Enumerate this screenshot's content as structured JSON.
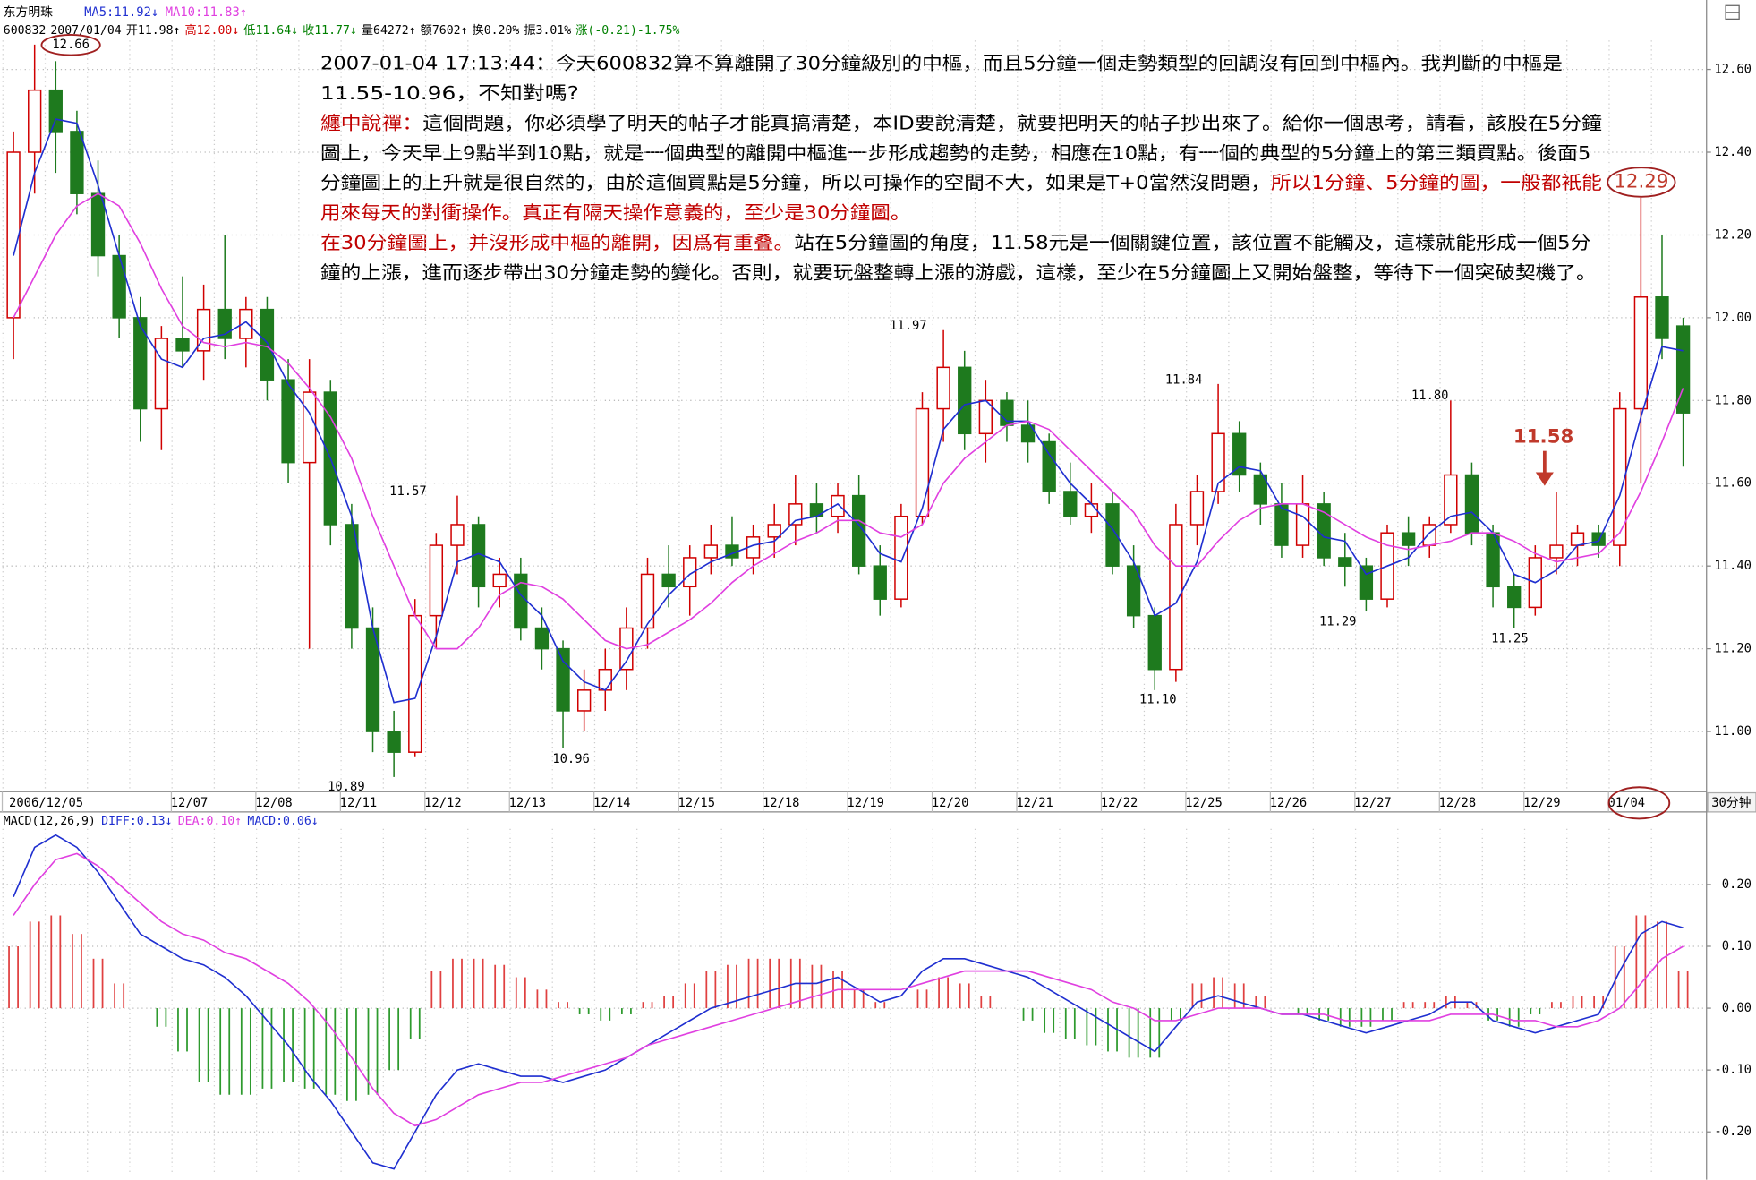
{
  "header": {
    "name": "东方明珠",
    "ma5": "MA5:11.92↓",
    "ma10": "MA10:11.83↑",
    "quote": [
      {
        "text": "600832",
        "color": "#000000"
      },
      {
        "text": "2007/01/04",
        "color": "#000000"
      },
      {
        "text": "开11.98↑",
        "color": "#000000"
      },
      {
        "text": "高12.00↓",
        "color": "#d00000"
      },
      {
        "text": "低11.64↓",
        "color": "#008000"
      },
      {
        "text": "收11.77↓",
        "color": "#008000"
      },
      {
        "text": "量64272↑",
        "color": "#000000"
      },
      {
        "text": "额7602↑",
        "color": "#000000"
      },
      {
        "text": "换0.20%",
        "color": "#000000"
      },
      {
        "text": "振3.01%",
        "color": "#000000"
      },
      {
        "text": "涨(-0.21)-1.75%",
        "color": "#008000"
      }
    ]
  },
  "note": {
    "lines": [
      [
        {
          "text": "2007-01-04 17:13:44：今天600832算不算離開了30分鐘級別的中樞，而且5分鐘一個走勢類型的回調沒有回到中樞內。我判斷的中樞是",
          "color": "#000000"
        }
      ],
      [
        {
          "text": "11.55-10.96，不知對嗎?",
          "color": "#000000"
        }
      ],
      [
        {
          "text": "纏中說禪：",
          "color": "#c00000"
        },
        {
          "text": "這個問題，你必須學了明天的帖子才能真搞清楚，本ID要說清楚，就要把明天的帖子抄出來了。給你一個思考，請看，該股在5分鐘",
          "color": "#000000"
        }
      ],
      [
        {
          "text": "圖上，今天早上9點半到10點，就是一個典型的離開中樞進一步形成趨勢的走勢，相應在10點，有一個的典型的5分鐘上的第三類買點。後面5",
          "color": "#000000"
        }
      ],
      [
        {
          "text": "分鐘圖上的上升就是很自然的，由於這個買點是5分鐘，所以可操作的空間不大，如果是T+0當然沒問題，",
          "color": "#000000"
        },
        {
          "text": "所以1分鐘、5分鐘的圖，一般都衹能",
          "color": "#c00000"
        }
      ],
      [
        {
          "text": "用來每天的對衝操作。真正有隔天操作意義的，至少是30分鐘圖。",
          "color": "#c00000"
        }
      ],
      [
        {
          "text": "在30分鐘圖上，并沒形成中樞的離開，因爲有重叠。",
          "color": "#c00000"
        },
        {
          "text": "站在5分鐘圖的角度，11.58元是一個關鍵位置，該位置不能觸及，這樣就能形成一個5分",
          "color": "#000000"
        }
      ],
      [
        {
          "text": "鐘的上漲，進而逐步帶出30分鐘走勢的變化。否則，就要玩盤整轉上漲的游戲，這樣，至少在5分鐘圖上又開始盤整，等待下一個突破契機了。",
          "color": "#000000"
        }
      ]
    ]
  },
  "chart_data": [
    {
      "type": "candlestick",
      "period": "30分钟",
      "grid": true,
      "up_color": "#d00000",
      "down_color": "#1e7a1e",
      "categories": [
        "2006/12/05",
        null,
        null,
        null,
        null,
        null,
        null,
        null,
        "12/07",
        null,
        null,
        null,
        "12/08",
        null,
        null,
        null,
        "12/11",
        null,
        null,
        null,
        "12/12",
        null,
        null,
        null,
        "12/13",
        null,
        null,
        null,
        "12/14",
        null,
        null,
        null,
        "12/15",
        null,
        null,
        null,
        "12/18",
        null,
        null,
        null,
        "12/19",
        null,
        null,
        null,
        "12/20",
        null,
        null,
        null,
        "12/21",
        null,
        null,
        null,
        "12/22",
        null,
        null,
        null,
        "12/25",
        null,
        null,
        null,
        "12/26",
        null,
        null,
        null,
        "12/27",
        null,
        null,
        null,
        "12/28",
        null,
        null,
        null,
        "12/29",
        null,
        null,
        null,
        "01/04",
        null,
        null,
        null
      ],
      "open": [
        12.0,
        12.4,
        12.55,
        12.45,
        12.3,
        12.15,
        12.0,
        11.78,
        11.95,
        11.92,
        12.02,
        11.95,
        12.02,
        11.85,
        11.65,
        11.82,
        11.5,
        11.25,
        11.0,
        10.95,
        11.28,
        11.45,
        11.5,
        11.35,
        11.38,
        11.25,
        11.2,
        11.05,
        11.1,
        11.15,
        11.25,
        11.38,
        11.35,
        11.42,
        11.45,
        11.42,
        11.47,
        11.5,
        11.55,
        11.52,
        11.57,
        11.4,
        11.32,
        11.52,
        11.78,
        11.88,
        11.72,
        11.8,
        11.74,
        11.7,
        11.58,
        11.52,
        11.55,
        11.4,
        11.28,
        11.15,
        11.5,
        11.58,
        11.72,
        11.62,
        11.55,
        11.45,
        11.55,
        11.42,
        11.4,
        11.32,
        11.48,
        11.45,
        11.5,
        11.62,
        11.48,
        11.35,
        11.3,
        11.42,
        11.45,
        11.48,
        11.45,
        11.78,
        12.05,
        11.98
      ],
      "high": [
        12.45,
        12.66,
        12.62,
        12.5,
        12.38,
        12.2,
        12.05,
        11.98,
        12.1,
        12.08,
        12.2,
        12.05,
        12.05,
        11.9,
        11.9,
        11.85,
        11.55,
        11.3,
        11.05,
        11.32,
        11.48,
        11.57,
        11.52,
        11.42,
        11.42,
        11.3,
        11.22,
        11.15,
        11.2,
        11.3,
        11.42,
        11.45,
        11.45,
        11.5,
        11.52,
        11.5,
        11.55,
        11.62,
        11.6,
        11.6,
        11.62,
        11.45,
        11.55,
        11.82,
        11.97,
        11.92,
        11.85,
        11.82,
        11.8,
        11.72,
        11.65,
        11.6,
        11.58,
        11.45,
        11.3,
        11.55,
        11.62,
        11.84,
        11.75,
        11.65,
        11.6,
        11.62,
        11.58,
        11.48,
        11.42,
        11.5,
        11.52,
        11.52,
        11.8,
        11.65,
        11.5,
        11.38,
        11.45,
        11.58,
        11.5,
        11.5,
        11.82,
        12.29,
        12.2,
        12.0
      ],
      "low": [
        11.9,
        12.3,
        12.35,
        12.25,
        12.1,
        11.95,
        11.7,
        11.68,
        11.88,
        11.85,
        11.9,
        11.88,
        11.8,
        11.6,
        11.2,
        11.45,
        11.2,
        10.95,
        10.89,
        10.94,
        11.2,
        11.38,
        11.3,
        11.3,
        11.22,
        11.15,
        10.96,
        11.0,
        11.05,
        11.1,
        11.2,
        11.3,
        11.28,
        11.38,
        11.4,
        11.38,
        11.42,
        11.45,
        11.48,
        11.48,
        11.38,
        11.28,
        11.3,
        11.5,
        11.7,
        11.68,
        11.65,
        11.7,
        11.65,
        11.55,
        11.5,
        11.48,
        11.38,
        11.25,
        11.1,
        11.12,
        11.45,
        11.55,
        11.58,
        11.5,
        11.42,
        11.42,
        11.4,
        11.35,
        11.29,
        11.3,
        11.4,
        11.42,
        11.48,
        11.45,
        11.3,
        11.25,
        11.28,
        11.38,
        11.4,
        11.42,
        11.4,
        11.6,
        11.9,
        11.64
      ],
      "close": [
        12.4,
        12.55,
        12.45,
        12.3,
        12.15,
        12.0,
        11.78,
        11.95,
        11.92,
        12.02,
        11.95,
        12.02,
        11.85,
        11.65,
        11.82,
        11.5,
        11.25,
        11.0,
        10.95,
        11.28,
        11.45,
        11.5,
        11.35,
        11.38,
        11.25,
        11.2,
        11.05,
        11.1,
        11.15,
        11.25,
        11.38,
        11.35,
        11.42,
        11.45,
        11.42,
        11.47,
        11.5,
        11.55,
        11.52,
        11.57,
        11.4,
        11.32,
        11.52,
        11.78,
        11.88,
        11.72,
        11.8,
        11.74,
        11.7,
        11.58,
        11.52,
        11.55,
        11.4,
        11.28,
        11.15,
        11.5,
        11.58,
        11.72,
        11.62,
        11.55,
        11.45,
        11.55,
        11.42,
        11.4,
        11.32,
        11.48,
        11.45,
        11.5,
        11.62,
        11.48,
        11.35,
        11.3,
        11.42,
        11.45,
        11.48,
        11.45,
        11.78,
        12.05,
        11.95,
        11.77
      ],
      "lines": [
        {
          "color": "#1f2fd0",
          "values": [
            12.15,
            12.35,
            12.48,
            12.47,
            12.32,
            12.15,
            11.98,
            11.9,
            11.88,
            11.95,
            11.96,
            11.99,
            11.94,
            11.84,
            11.77,
            11.66,
            11.52,
            11.25,
            11.07,
            11.08,
            11.23,
            11.41,
            11.43,
            11.41,
            11.33,
            11.28,
            11.17,
            11.12,
            11.1,
            11.17,
            11.26,
            11.33,
            11.38,
            11.41,
            11.43,
            11.45,
            11.46,
            11.51,
            11.52,
            11.55,
            11.5,
            11.43,
            11.41,
            11.54,
            11.73,
            11.79,
            11.8,
            11.75,
            11.75,
            11.67,
            11.6,
            11.55,
            11.49,
            11.41,
            11.28,
            11.31,
            11.41,
            11.6,
            11.64,
            11.63,
            11.54,
            11.52,
            11.47,
            11.46,
            11.38,
            11.4,
            11.42,
            11.48,
            11.52,
            11.53,
            11.48,
            11.38,
            11.36,
            11.39,
            11.45,
            11.46,
            11.57,
            11.76,
            11.93,
            11.92
          ]
        },
        {
          "color": "#e040e0",
          "values": [
            12.0,
            12.1,
            12.2,
            12.27,
            12.3,
            12.27,
            12.18,
            12.07,
            11.98,
            11.94,
            11.93,
            11.94,
            11.93,
            11.89,
            11.83,
            11.76,
            11.66,
            11.52,
            11.4,
            11.28,
            11.2,
            11.2,
            11.25,
            11.33,
            11.36,
            11.35,
            11.32,
            11.27,
            11.22,
            11.2,
            11.21,
            11.24,
            11.27,
            11.31,
            11.36,
            11.4,
            11.43,
            11.46,
            11.48,
            11.51,
            11.51,
            11.48,
            11.47,
            11.5,
            11.6,
            11.66,
            11.7,
            11.74,
            11.75,
            11.73,
            11.68,
            11.63,
            11.58,
            11.53,
            11.45,
            11.4,
            11.4,
            11.46,
            11.51,
            11.54,
            11.55,
            11.55,
            11.53,
            11.5,
            11.47,
            11.45,
            11.44,
            11.45,
            11.46,
            11.48,
            11.48,
            11.46,
            11.43,
            11.41,
            11.42,
            11.43,
            11.48,
            11.58,
            11.7,
            11.83
          ]
        }
      ],
      "ylim": [
        10.86,
        12.67
      ],
      "yticks": [
        {
          "value": 11.0,
          "label": "11.00"
        },
        {
          "value": 11.2,
          "label": "11.20"
        },
        {
          "value": 11.4,
          "label": "11.40"
        },
        {
          "value": 11.6,
          "label": "11.60"
        },
        {
          "value": 11.8,
          "label": "11.80"
        },
        {
          "value": 12.0,
          "label": "12.00"
        },
        {
          "value": 12.2,
          "label": "12.20"
        },
        {
          "value": 12.4,
          "label": "12.40"
        },
        {
          "value": 12.6,
          "label": "12.60"
        }
      ],
      "annotations": [
        {
          "text": "12.66",
          "color": "#000000"
        },
        {
          "text": "11.57",
          "color": "#000000"
        },
        {
          "text": "10.89",
          "color": "#000000"
        },
        {
          "text": "10.96",
          "color": "#000000"
        },
        {
          "text": "11.97",
          "color": "#000000"
        },
        {
          "text": "11.10",
          "color": "#000000"
        },
        {
          "text": "11.84",
          "color": "#000000"
        },
        {
          "text": "11.29",
          "color": "#000000"
        },
        {
          "text": "11.80",
          "color": "#000000"
        },
        {
          "text": "11.25",
          "color": "#000000"
        },
        {
          "text": "11.58",
          "color": "#c0392b"
        },
        {
          "text": "12.29",
          "color": "#c0392b"
        }
      ]
    },
    {
      "type": "macd",
      "title": "MACD(12,26,9)",
      "grid": true,
      "up_color": "#e04040",
      "down_color": "#2e9a2e",
      "legend": [
        {
          "text": "DIFF:0.13↓",
          "color": "#1f2fd0"
        },
        {
          "text": "DEA:0.10↑",
          "color": "#e040e0"
        },
        {
          "text": "MACD:0.06↓",
          "color": "#1f2fd0"
        }
      ],
      "values": [
        0.1,
        0.14,
        0.15,
        0.12,
        0.08,
        0.04,
        0.0,
        -0.03,
        -0.07,
        -0.12,
        -0.14,
        -0.14,
        -0.13,
        -0.12,
        -0.13,
        -0.14,
        -0.15,
        -0.14,
        -0.1,
        -0.05,
        0.06,
        0.08,
        0.08,
        0.07,
        0.05,
        0.03,
        0.01,
        -0.01,
        -0.02,
        -0.01,
        0.01,
        0.02,
        0.04,
        0.06,
        0.07,
        0.08,
        0.08,
        0.08,
        0.07,
        0.06,
        0.03,
        0.01,
        0.0,
        0.03,
        0.05,
        0.04,
        0.02,
        0.0,
        -0.02,
        -0.04,
        -0.05,
        -0.06,
        -0.07,
        -0.08,
        -0.08,
        -0.02,
        0.04,
        0.05,
        0.04,
        0.02,
        0.0,
        -0.01,
        -0.02,
        -0.03,
        -0.03,
        -0.02,
        0.01,
        0.01,
        0.02,
        0.01,
        -0.02,
        -0.03,
        -0.01,
        0.01,
        0.02,
        0.02,
        0.1,
        0.15,
        0.14,
        0.06
      ],
      "lines": [
        {
          "color": "#1f2fd0",
          "values": [
            0.18,
            0.26,
            0.28,
            0.26,
            0.22,
            0.17,
            0.12,
            0.1,
            0.08,
            0.07,
            0.05,
            0.02,
            -0.02,
            -0.06,
            -0.11,
            -0.15,
            -0.2,
            -0.25,
            -0.26,
            -0.2,
            -0.14,
            -0.1,
            -0.09,
            -0.1,
            -0.11,
            -0.11,
            -0.12,
            -0.11,
            -0.1,
            -0.08,
            -0.06,
            -0.04,
            -0.02,
            0.0,
            0.01,
            0.02,
            0.03,
            0.04,
            0.04,
            0.05,
            0.03,
            0.01,
            0.02,
            0.06,
            0.08,
            0.08,
            0.07,
            0.06,
            0.05,
            0.03,
            0.01,
            -0.01,
            -0.03,
            -0.05,
            -0.07,
            -0.03,
            0.01,
            0.02,
            0.01,
            0.0,
            -0.01,
            -0.01,
            -0.02,
            -0.03,
            -0.04,
            -0.03,
            -0.02,
            -0.01,
            0.01,
            0.01,
            -0.02,
            -0.03,
            -0.04,
            -0.03,
            -0.02,
            -0.01,
            0.06,
            0.12,
            0.14,
            0.13
          ]
        },
        {
          "color": "#e040e0",
          "values": [
            0.15,
            0.2,
            0.24,
            0.25,
            0.23,
            0.2,
            0.17,
            0.14,
            0.12,
            0.11,
            0.09,
            0.08,
            0.06,
            0.04,
            0.01,
            -0.03,
            -0.08,
            -0.13,
            -0.17,
            -0.19,
            -0.18,
            -0.16,
            -0.14,
            -0.13,
            -0.12,
            -0.12,
            -0.11,
            -0.1,
            -0.09,
            -0.08,
            -0.06,
            -0.05,
            -0.04,
            -0.03,
            -0.02,
            -0.01,
            0.0,
            0.01,
            0.02,
            0.03,
            0.03,
            0.03,
            0.03,
            0.04,
            0.05,
            0.06,
            0.06,
            0.06,
            0.06,
            0.05,
            0.04,
            0.03,
            0.01,
            0.0,
            -0.02,
            -0.02,
            -0.01,
            0.0,
            0.0,
            0.0,
            -0.01,
            -0.01,
            -0.01,
            -0.02,
            -0.02,
            -0.02,
            -0.02,
            -0.02,
            -0.01,
            -0.01,
            -0.01,
            -0.02,
            -0.02,
            -0.03,
            -0.03,
            -0.02,
            0.0,
            0.04,
            0.08,
            0.1
          ]
        }
      ],
      "ylim": [
        -0.27,
        0.29
      ],
      "yticks": [
        {
          "value": -0.2,
          "label": "-0.20"
        },
        {
          "value": -0.1,
          "label": "-0.10"
        },
        {
          "value": 0.0,
          "label": "0.00"
        },
        {
          "value": 0.1,
          "label": "0.10"
        },
        {
          "value": 0.2,
          "label": "0.20"
        }
      ]
    }
  ]
}
